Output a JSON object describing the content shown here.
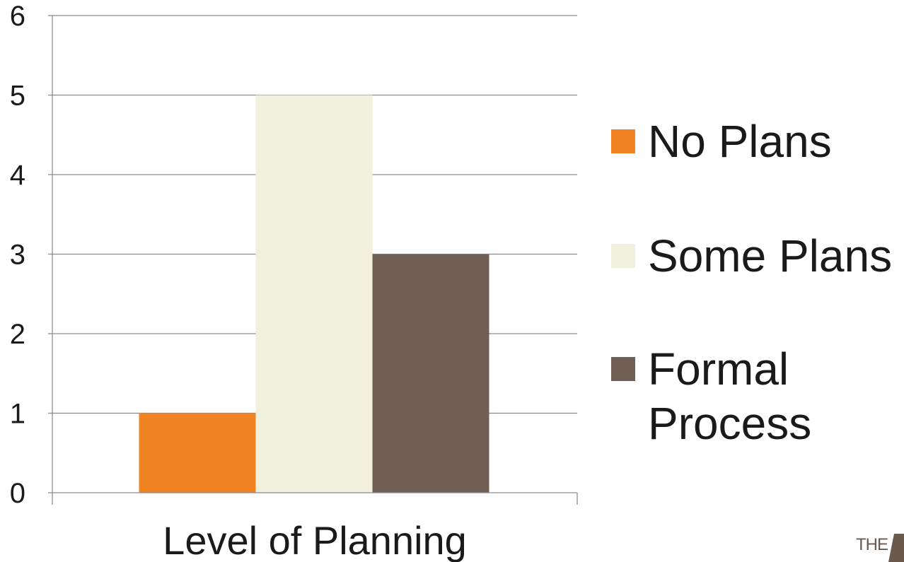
{
  "chart_data": {
    "type": "bar",
    "title": "",
    "xlabel": "",
    "ylabel": "",
    "categories": [
      "Level of Planning"
    ],
    "series": [
      {
        "name": "No Plans",
        "values": [
          1
        ],
        "color": "#f28322"
      },
      {
        "name": "Some Plans",
        "values": [
          5
        ],
        "color": "#f1f0dc"
      },
      {
        "name": "Formal Process",
        "values": [
          3
        ],
        "color": "#705f55"
      }
    ],
    "ylim": [
      0,
      6
    ],
    "yticks": [
      "0",
      "1",
      "2",
      "3",
      "4",
      "5",
      "6"
    ],
    "grid": true,
    "legend_position": "right"
  },
  "logo": {
    "text": "THE"
  }
}
